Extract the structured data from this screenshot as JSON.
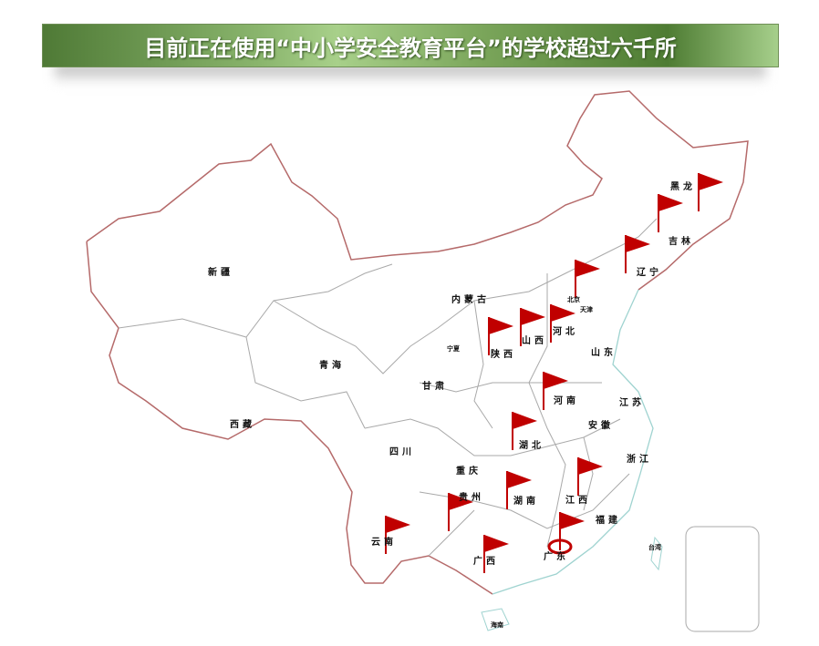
{
  "title": "目前正在使用“中小学安全教育平台”的学校超过六千所",
  "colors": {
    "border": "#b56a6a",
    "coast": "#9fd3d0",
    "internal": "#a9a9a9",
    "flag": "#c00000",
    "banner": "#6a9a4a"
  },
  "provinces": [
    "黑龙",
    "吉林",
    "辽宁",
    "北京",
    "天津",
    "河北",
    "山东",
    "内蒙古",
    "新疆",
    "青海",
    "西藏",
    "甘肃",
    "宁夏",
    "陕西",
    "山西",
    "河南",
    "江苏",
    "安徽",
    "湖北",
    "四川",
    "重庆",
    "浙江",
    "贵州",
    "湖南",
    "江西",
    "福建",
    "云南",
    "广西",
    "广东",
    "台湾",
    "海南"
  ],
  "flag_icon": "red-flag-icon",
  "highlight_icon": "target-ring-icon"
}
